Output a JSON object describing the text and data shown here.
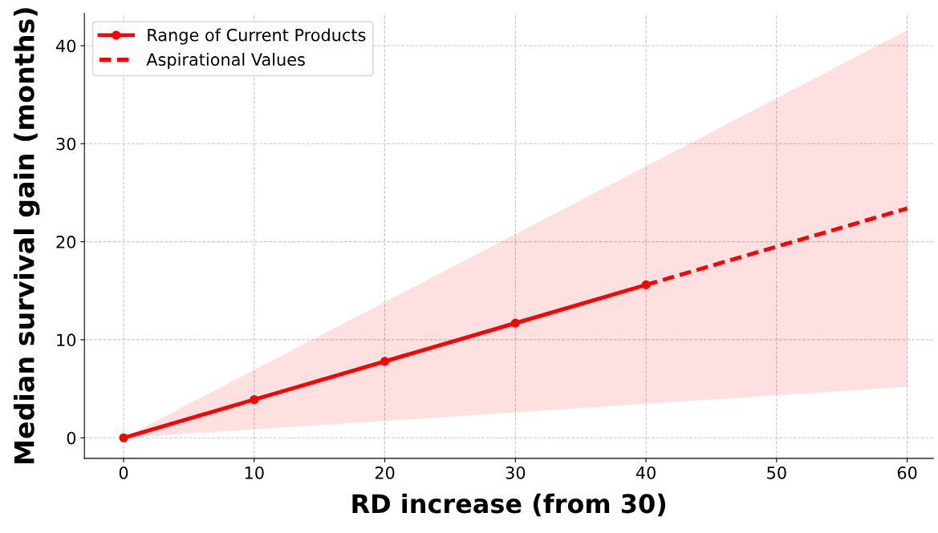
{
  "chart_data": {
    "type": "line",
    "xlabel": "RD increase (from 30)",
    "ylabel": "Median survival gain (months)",
    "xlim": [
      -3,
      62
    ],
    "ylim": [
      -2.1,
      43.3
    ],
    "xticks": [
      0,
      10,
      20,
      30,
      40,
      50,
      60
    ],
    "yticks": [
      0,
      10,
      20,
      30,
      40
    ],
    "grid": true,
    "legend": "top left",
    "series": [
      {
        "name": "Range of Current Products",
        "color": "#ff0000",
        "marker": "circle",
        "line_style": "solid",
        "x": [
          0,
          10,
          20,
          30,
          40
        ],
        "values": [
          0,
          3.9,
          7.8,
          11.7,
          15.6
        ]
      },
      {
        "name": "Aspirational Values",
        "color": "#ff0000",
        "marker": "none",
        "line_style": "dashed",
        "x": [
          0,
          40,
          60
        ],
        "values": [
          null,
          15.6,
          23.4
        ],
        "lower": [
          0,
          3.47,
          5.2
        ],
        "upper": [
          0,
          27.7,
          41.6
        ]
      }
    ]
  }
}
